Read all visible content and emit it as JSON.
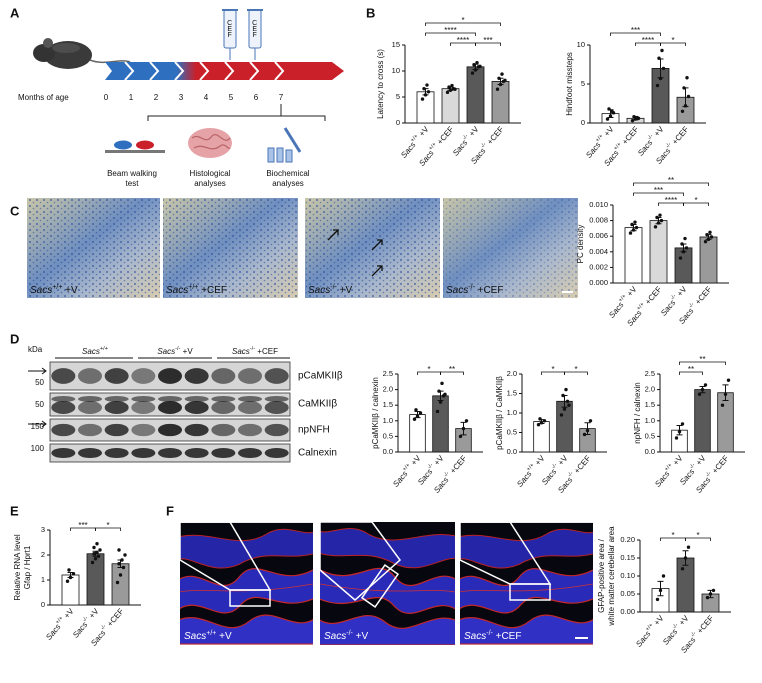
{
  "panel_labels": [
    "A",
    "B",
    "C",
    "D",
    "E",
    "F"
  ],
  "timeline": {
    "months": [
      0,
      1,
      2,
      3,
      4,
      5,
      6,
      7
    ],
    "axis_label": "Months of age",
    "treatment": "CEF",
    "steps": [
      [
        "Beam walking",
        "test"
      ],
      [
        "Histological",
        "analyses"
      ],
      [
        "Biochemical",
        "analyses"
      ]
    ]
  },
  "micrographs": [
    "Sacs+/+ +V",
    "Sacs+/+ +CEF",
    "Sacs-/- +V",
    "Sacs-/- +CEF"
  ],
  "blot": {
    "unit": "kDa",
    "markers": [
      50,
      50,
      150,
      100
    ],
    "groups": [
      "Sacs+/+",
      "Sacs-/- +V",
      "Sacs-/- +CEF"
    ],
    "bands": [
      "pCaMKIIβ",
      "CaMKIIβ",
      "npNFH",
      "Calnexin"
    ]
  },
  "fluorescence": [
    "Sacs+/+ +V",
    "Sacs-/- +V",
    "Sacs-/- +CEF"
  ],
  "chart_data": [
    {
      "type": "bar",
      "ylabel": [
        "Latency to cross (s)"
      ],
      "categories": [
        "Sacs+/+ +V",
        "Sacs+/+ +CEF",
        "Sacs-/- +V",
        "Sacs-/- +CEF"
      ],
      "values": [
        6.0,
        6.6,
        10.8,
        8.0
      ],
      "errors": [
        0.6,
        0.3,
        0.5,
        0.6
      ],
      "colors": [
        "#ffffff",
        "#d9d9d9",
        "#595959",
        "#9a9a9a"
      ],
      "points": [
        [
          4.6,
          5.4,
          6.0,
          6.6,
          7.3
        ],
        [
          5.9,
          6.3,
          6.6,
          6.9,
          7.2,
          6.5
        ],
        [
          9.6,
          10.2,
          10.8,
          11.2,
          11.6,
          10.9
        ],
        [
          6.5,
          7.4,
          8.0,
          8.6,
          9.4,
          8.2
        ]
      ],
      "ylim": [
        0,
        15
      ],
      "yticks": [
        0,
        5,
        10,
        15
      ],
      "significance": [
        {
          "from": 0,
          "to": 3,
          "label": "*"
        },
        {
          "from": 1,
          "to": 2,
          "label": "****"
        },
        {
          "from": 0,
          "to": 2,
          "label": "****"
        },
        {
          "from": 2,
          "to": 3,
          "label": "***"
        }
      ]
    },
    {
      "type": "bar",
      "ylabel": [
        "Hindfoot missteps"
      ],
      "categories": [
        "Sacs+/+ +V",
        "Sacs+/+ +CEF",
        "Sacs-/- +V",
        "Sacs-/- +CEF"
      ],
      "values": [
        1.2,
        0.6,
        7.0,
        3.3
      ],
      "errors": [
        0.5,
        0.2,
        1.2,
        1.2
      ],
      "colors": [
        "#ffffff",
        "#d9d9d9",
        "#595959",
        "#9a9a9a"
      ],
      "points": [
        [
          0.5,
          0.9,
          1.3,
          1.8,
          1.5
        ],
        [
          0.3,
          0.5,
          0.6,
          0.8,
          0.7
        ],
        [
          4.8,
          5.7,
          7.0,
          8.3,
          9.3
        ],
        [
          1.5,
          2.2,
          3.4,
          4.5,
          5.8
        ]
      ],
      "ylim": [
        0,
        10
      ],
      "yticks": [
        0,
        5,
        10
      ],
      "significance": [
        {
          "from": 0,
          "to": 2,
          "label": "***"
        },
        {
          "from": 1,
          "to": 2,
          "label": "****"
        },
        {
          "from": 2,
          "to": 3,
          "label": "*"
        }
      ]
    },
    {
      "type": "bar",
      "ylabel": [
        "PC density"
      ],
      "categories": [
        "Sacs+/+ +V",
        "Sacs+/+ +CEF",
        "Sacs-/- +V",
        "Sacs-/- +CEF"
      ],
      "values": [
        0.0071,
        0.008,
        0.0045,
        0.0059
      ],
      "errors": [
        0.0004,
        0.0004,
        0.0005,
        0.0003
      ],
      "colors": [
        "#ffffff",
        "#d9d9d9",
        "#595959",
        "#9a9a9a"
      ],
      "points": [
        [
          0.0064,
          0.0068,
          0.0071,
          0.0075,
          0.0078
        ],
        [
          0.0072,
          0.0077,
          0.008,
          0.0084,
          0.0087
        ],
        [
          0.0032,
          0.004,
          0.0045,
          0.005,
          0.0057
        ],
        [
          0.0053,
          0.0056,
          0.0059,
          0.0062,
          0.0065
        ]
      ],
      "ylim": [
        0,
        0.01
      ],
      "yticks": [
        {
          "value": 0,
          "label": "0.000"
        },
        {
          "value": 0.002,
          "label": "0.002"
        },
        {
          "value": 0.004,
          "label": "0.004"
        },
        {
          "value": 0.006,
          "label": "0.006"
        },
        {
          "value": 0.008,
          "label": "0.008"
        },
        {
          "value": 0.01,
          "label": "0.010"
        }
      ],
      "significance": [
        {
          "from": 0,
          "to": 3,
          "label": "**"
        },
        {
          "from": 1,
          "to": 2,
          "label": "****"
        },
        {
          "from": 0,
          "to": 2,
          "label": "***"
        },
        {
          "from": 2,
          "to": 3,
          "label": "*"
        }
      ]
    },
    {
      "type": "bar",
      "ylabel": [
        "pCaMKIIβ / calnexin"
      ],
      "categories": [
        "Sacs+/+ +V",
        "Sacs-/- +V",
        "Sacs-/- +CEF"
      ],
      "values": [
        1.2,
        1.8,
        0.75
      ],
      "errors": [
        0.1,
        0.15,
        0.2
      ],
      "colors": [
        "#ffffff",
        "#595959",
        "#9a9a9a"
      ],
      "points": [
        [
          1.05,
          1.15,
          1.25,
          1.35
        ],
        [
          1.3,
          1.6,
          1.8,
          1.95,
          2.2,
          1.85
        ],
        [
          0.5,
          0.75,
          1.0
        ]
      ],
      "ylim": [
        0,
        2.5
      ],
      "yticks": [
        {
          "value": 0,
          "label": "0.0"
        },
        0.5,
        {
          "value": 1,
          "label": "1.0"
        },
        1.5,
        {
          "value": 2,
          "label": "2.0"
        },
        2.5
      ],
      "significance": [
        {
          "from": 0,
          "to": 1,
          "label": "*"
        },
        {
          "from": 1,
          "to": 2,
          "label": "**"
        }
      ]
    },
    {
      "type": "bar",
      "ylabel": [
        "pCaMKIIβ / CaMKIIβ"
      ],
      "categories": [
        "Sacs+/+ +V",
        "Sacs-/- +V",
        "Sacs-/- +CEF"
      ],
      "values": [
        0.78,
        1.3,
        0.6
      ],
      "errors": [
        0.05,
        0.15,
        0.15
      ],
      "colors": [
        "#ffffff",
        "#595959",
        "#9a9a9a"
      ],
      "points": [
        [
          0.7,
          0.75,
          0.8,
          0.85
        ],
        [
          0.95,
          1.1,
          1.3,
          1.45,
          1.6,
          1.2
        ],
        [
          0.45,
          0.55,
          0.8
        ]
      ],
      "ylim": [
        0,
        2
      ],
      "yticks": [
        {
          "value": 0,
          "label": "0.0"
        },
        0.5,
        {
          "value": 1,
          "label": "1.0"
        },
        1.5,
        {
          "value": 2,
          "label": "2.0"
        }
      ],
      "significance": [
        {
          "from": 0,
          "to": 1,
          "label": "*"
        },
        {
          "from": 1,
          "to": 2,
          "label": "*"
        }
      ]
    },
    {
      "type": "bar",
      "ylabel": [
        "npNFH / calnexin"
      ],
      "categories": [
        "Sacs+/+ +V",
        "Sacs-/- +V",
        "Sacs-/- +CEF"
      ],
      "values": [
        0.7,
        2.0,
        1.9
      ],
      "errors": [
        0.15,
        0.1,
        0.25
      ],
      "colors": [
        "#ffffff",
        "#595959",
        "#9a9a9a"
      ],
      "points": [
        [
          0.45,
          0.65,
          0.9
        ],
        [
          1.85,
          2.0,
          2.15
        ],
        [
          1.5,
          1.85,
          2.3
        ]
      ],
      "ylim": [
        0,
        2.5
      ],
      "yticks": [
        {
          "value": 0,
          "label": "0.0"
        },
        0.5,
        {
          "value": 1,
          "label": "1.0"
        },
        1.5,
        {
          "value": 2,
          "label": "2.0"
        },
        2.5
      ],
      "significance": [
        {
          "from": 0,
          "to": 1,
          "label": "**"
        },
        {
          "from": 0,
          "to": 2,
          "label": "**"
        }
      ]
    },
    {
      "type": "bar",
      "ylabel": [
        "Relative RNA level",
        "Gfap / Hprt1"
      ],
      "categories": [
        "Sacs+/+ +V",
        "Sacs-/- +V",
        "Sacs-/- +CEF"
      ],
      "values": [
        1.2,
        2.05,
        1.65
      ],
      "errors": [
        0.1,
        0.1,
        0.15
      ],
      "colors": [
        "#ffffff",
        "#595959",
        "#9a9a9a"
      ],
      "points": [
        [
          0.95,
          1.1,
          1.25,
          1.4
        ],
        [
          1.7,
          1.85,
          1.95,
          2.05,
          2.1,
          2.2,
          2.3,
          2.45
        ],
        [
          0.9,
          1.2,
          1.5,
          1.65,
          1.8,
          2.0,
          2.2
        ]
      ],
      "ylim": [
        0,
        3
      ],
      "yticks": [
        0,
        1,
        2,
        3
      ],
      "significance": [
        {
          "from": 0,
          "to": 1,
          "label": "***"
        },
        {
          "from": 1,
          "to": 2,
          "label": "*"
        }
      ]
    },
    {
      "type": "bar",
      "ylabel": [
        "GFAP-positive area /",
        "white matter cerebellar area"
      ],
      "categories": [
        "Sacs+/+ +V",
        "Sacs-/- +V",
        "Sacs-/- +CEF"
      ],
      "values": [
        0.065,
        0.15,
        0.05
      ],
      "errors": [
        0.02,
        0.02,
        0.01
      ],
      "colors": [
        "#ffffff",
        "#595959",
        "#9a9a9a"
      ],
      "points": [
        [
          0.035,
          0.06,
          0.1
        ],
        [
          0.12,
          0.15,
          0.18
        ],
        [
          0.04,
          0.05,
          0.06
        ]
      ],
      "ylim": [
        0,
        0.2
      ],
      "yticks": [
        {
          "value": 0,
          "label": "0.00"
        },
        0.05,
        {
          "value": 0.1,
          "label": "0.10"
        },
        0.15,
        {
          "value": 0.2,
          "label": "0.20"
        }
      ],
      "significance": [
        {
          "from": 0,
          "to": 1,
          "label": "*"
        },
        {
          "from": 1,
          "to": 2,
          "label": "*"
        }
      ]
    }
  ]
}
